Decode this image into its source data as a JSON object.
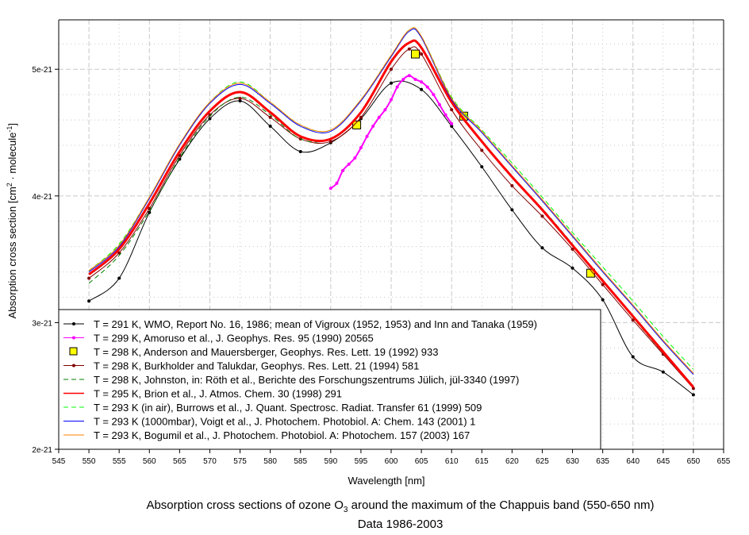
{
  "chart_data": {
    "type": "line",
    "title": "Absorption cross sections of ozone O3 around the maximum of the Chappuis band (550-650 nm)",
    "title_main": "Absorption cross sections of ozone O",
    "title_sub": "3",
    "title_rest": " around the maximum of the Chappuis band (550-650 nm)",
    "subtitle": "Data 1986-2003",
    "xlabel": "Wavelength [nm]",
    "ylabel": "Absorption cross section [cm^2 · molecule^-1]",
    "ylabel_parts": [
      "Absorption cross section [cm",
      "2",
      " · molecule",
      "-1",
      "]"
    ],
    "xlim": [
      545,
      655
    ],
    "ylim": [
      2e-21,
      5.39e-21
    ],
    "y_unit": 1e-21,
    "xticks": [
      545,
      550,
      555,
      560,
      565,
      570,
      575,
      580,
      585,
      590,
      595,
      600,
      605,
      610,
      615,
      620,
      625,
      630,
      635,
      640,
      645,
      650,
      655
    ],
    "yticks": [
      {
        "v": 2,
        "label": "2e-21"
      },
      {
        "v": 3,
        "label": "3e-21"
      },
      {
        "v": 4,
        "label": "4e-21"
      },
      {
        "v": 5,
        "label": "5e-21"
      }
    ],
    "grid": true,
    "legend_position": "bottom-left",
    "series": [
      {
        "name": "T = 291 K, WMO, Report No. 16, 1986; mean of Vigroux (1952, 1953) and Inn and Tanaka (1959)",
        "color": "#000000",
        "style": "solid-marker",
        "width": 1,
        "x": [
          550,
          555,
          560,
          565,
          570,
          575,
          580,
          585,
          590,
          595,
          600,
          605,
          610,
          615,
          620,
          625,
          630,
          635,
          640,
          645,
          650
        ],
        "y": [
          3.17,
          3.35,
          3.87,
          4.29,
          4.61,
          4.75,
          4.55,
          4.35,
          4.42,
          4.61,
          4.89,
          4.84,
          4.55,
          4.23,
          3.89,
          3.59,
          3.43,
          3.18,
          2.73,
          2.61,
          2.43
        ]
      },
      {
        "name": "T = 299 K, Amoruso et al., J. Geophys. Res. 95 (1990) 20565",
        "color": "#ff00ff",
        "style": "solid-marker",
        "width": 2,
        "x": [
          590,
          591,
          592,
          593,
          594,
          595,
          596,
          597,
          598,
          599,
          600,
          601,
          602,
          603,
          604,
          605,
          606,
          607,
          608,
          609,
          610
        ],
        "y": [
          4.06,
          4.1,
          4.2,
          4.25,
          4.3,
          4.38,
          4.47,
          4.55,
          4.62,
          4.68,
          4.76,
          4.86,
          4.92,
          4.95,
          4.92,
          4.9,
          4.86,
          4.8,
          4.72,
          4.64,
          4.57
        ]
      },
      {
        "name": "T = 298 K, Anderson and Mauersberger, Geophys. Res. Lett. 19 (1992) 933",
        "color": "#ffff00",
        "style": "square",
        "width": 1,
        "x": [
          594.3,
          604,
          612,
          633
        ],
        "y": [
          4.56,
          5.12,
          4.63,
          3.39
        ]
      },
      {
        "name": "T = 298 K, Burkholder and Talukdar, Geophys. Res. Lett. 21 (1994) 581",
        "color": "#800000",
        "style": "solid-marker",
        "width": 1,
        "x": [
          550,
          555,
          560,
          565,
          570,
          575,
          580,
          585,
          590,
          595,
          600,
          603,
          605,
          610,
          615,
          620,
          625,
          630,
          635,
          640,
          645,
          650
        ],
        "y": [
          3.35,
          3.55,
          3.9,
          4.32,
          4.64,
          4.77,
          4.62,
          4.45,
          4.43,
          4.62,
          5.0,
          5.16,
          5.12,
          4.68,
          4.36,
          4.08,
          3.84,
          3.58,
          3.3,
          3.02,
          2.75,
          2.48
        ]
      },
      {
        "name": "T = 298 K, Johnston, in: Röth et al., Berichte des Forschungszentrums Jülich, jül-3340 (1997)",
        "color": "#008000",
        "style": "dashed",
        "width": 1,
        "x": [
          550,
          555,
          560,
          565,
          570,
          575,
          580,
          585,
          590,
          595,
          600,
          603,
          605,
          610,
          615,
          620,
          625,
          630,
          635,
          640,
          645,
          650
        ],
        "y": [
          3.31,
          3.53,
          3.88,
          4.3,
          4.63,
          4.78,
          4.64,
          4.45,
          4.45,
          4.66,
          5.06,
          5.21,
          5.17,
          4.74,
          4.43,
          4.15,
          3.9,
          3.62,
          3.33,
          3.04,
          2.76,
          2.5
        ]
      },
      {
        "name": "T = 295 K, Brion et al., J. Atmos. Chem. 30 (1998) 291",
        "color": "#ff0000",
        "style": "thick",
        "width": 3,
        "x": [
          550,
          555,
          560,
          565,
          570,
          575,
          580,
          585,
          590,
          595,
          600,
          603,
          605,
          610,
          615,
          620,
          625,
          630,
          635,
          640,
          645,
          650
        ],
        "y": [
          3.38,
          3.58,
          3.94,
          4.35,
          4.67,
          4.82,
          4.66,
          4.47,
          4.45,
          4.66,
          5.06,
          5.21,
          5.17,
          4.74,
          4.43,
          4.15,
          3.89,
          3.61,
          3.33,
          3.05,
          2.77,
          2.49
        ]
      },
      {
        "name": "T = 293 K (in air), Burrows et al., J. Quant. Spectrosc. Radiat. Transfer 61 (1999) 509",
        "color": "#00ff00",
        "style": "dashed",
        "width": 1,
        "x": [
          550,
          555,
          560,
          565,
          570,
          575,
          580,
          585,
          590,
          595,
          600,
          603,
          605,
          610,
          615,
          620,
          625,
          630,
          635,
          640,
          645,
          650
        ],
        "y": [
          3.41,
          3.62,
          3.99,
          4.41,
          4.74,
          4.9,
          4.74,
          4.56,
          4.52,
          4.76,
          5.11,
          5.31,
          5.26,
          4.78,
          4.52,
          4.26,
          3.99,
          3.71,
          3.44,
          3.17,
          2.89,
          2.63
        ]
      },
      {
        "name": "T = 293 K (1000mbar), Voigt et al., J. Photochem. Photobiol. A: Chem. 143 (2001) 1",
        "color": "#0000ff",
        "style": "solid",
        "width": 1,
        "x": [
          550,
          555,
          560,
          565,
          570,
          575,
          580,
          585,
          590,
          595,
          600,
          603,
          605,
          610,
          615,
          620,
          625,
          630,
          635,
          640,
          645,
          650
        ],
        "y": [
          3.4,
          3.6,
          3.98,
          4.4,
          4.73,
          4.88,
          4.73,
          4.55,
          4.51,
          4.75,
          5.1,
          5.3,
          5.25,
          4.76,
          4.5,
          4.23,
          3.96,
          3.68,
          3.4,
          3.13,
          2.85,
          2.59
        ]
      },
      {
        "name": "T = 293 K, Bogumil et al., J. Photochem. Photobiol. A: Photochem. 157 (2003) 167",
        "color": "#ff8000",
        "style": "solid",
        "width": 1,
        "x": [
          550,
          555,
          560,
          565,
          570,
          575,
          580,
          585,
          590,
          595,
          600,
          603,
          605,
          610,
          615,
          620,
          625,
          630,
          635,
          640,
          645,
          650
        ],
        "y": [
          3.41,
          3.61,
          3.99,
          4.41,
          4.74,
          4.89,
          4.74,
          4.56,
          4.52,
          4.76,
          5.11,
          5.31,
          5.26,
          4.77,
          4.51,
          4.24,
          3.97,
          3.69,
          3.41,
          3.14,
          2.86,
          2.6
        ]
      }
    ]
  }
}
